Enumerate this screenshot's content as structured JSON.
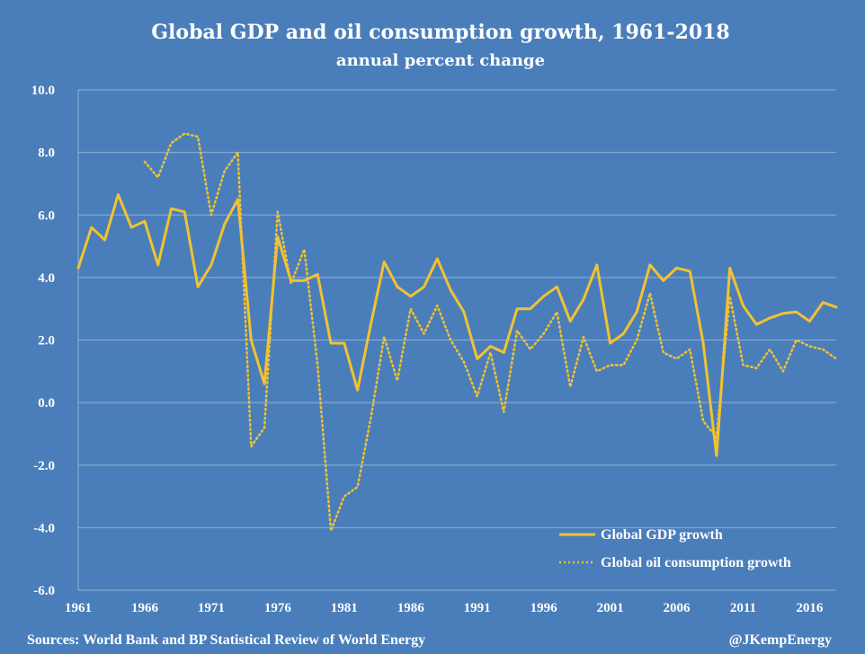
{
  "colors": {
    "background": "#4a7ebb",
    "line": "#f2c230",
    "grid": "#8fb0d6",
    "text": "#ffffff"
  },
  "chart_data": {
    "type": "line",
    "title": "Global GDP and oil consumption growth, 1961-2018",
    "subtitle": "annual percent change",
    "xlabel": "",
    "ylabel": "",
    "xlim": [
      1961,
      2018
    ],
    "ylim": [
      -6,
      10
    ],
    "grid": true,
    "legend_position": "bottom-right",
    "y_ticks": [
      "10.0",
      "8.0",
      "6.0",
      "4.0",
      "2.0",
      "0.0",
      "-2.0",
      "-4.0",
      "-6.0"
    ],
    "x_ticks": [
      "1961",
      "1966",
      "1971",
      "1976",
      "1981",
      "1986",
      "1991",
      "1996",
      "2001",
      "2006",
      "2011",
      "2016"
    ],
    "series": [
      {
        "name": "Global GDP growth",
        "style": "solid",
        "x": [
          1961,
          1962,
          1963,
          1964,
          1965,
          1966,
          1967,
          1968,
          1969,
          1970,
          1971,
          1972,
          1973,
          1974,
          1975,
          1976,
          1977,
          1978,
          1979,
          1980,
          1981,
          1982,
          1983,
          1984,
          1985,
          1986,
          1987,
          1988,
          1989,
          1990,
          1991,
          1992,
          1993,
          1994,
          1995,
          1996,
          1997,
          1998,
          1999,
          2000,
          2001,
          2002,
          2003,
          2004,
          2005,
          2006,
          2007,
          2008,
          2009,
          2010,
          2011,
          2012,
          2013,
          2014,
          2015,
          2016,
          2017,
          2018
        ],
        "values": [
          4.3,
          5.6,
          5.2,
          6.65,
          5.6,
          5.8,
          4.4,
          6.2,
          6.1,
          3.7,
          4.4,
          5.7,
          6.5,
          2.0,
          0.6,
          5.3,
          3.9,
          3.9,
          4.1,
          1.9,
          1.9,
          0.4,
          2.5,
          4.5,
          3.7,
          3.4,
          3.7,
          4.6,
          3.6,
          2.9,
          1.4,
          1.8,
          1.6,
          3.0,
          3.0,
          3.4,
          3.7,
          2.6,
          3.3,
          4.4,
          1.9,
          2.2,
          2.9,
          4.4,
          3.9,
          4.3,
          4.2,
          1.9,
          -1.7,
          4.3,
          3.1,
          2.5,
          2.7,
          2.85,
          2.9,
          2.6,
          3.2,
          3.05
        ]
      },
      {
        "name": "Global oil consumption growth",
        "style": "dotted",
        "x": [
          1966,
          1967,
          1968,
          1969,
          1970,
          1971,
          1972,
          1973,
          1974,
          1975,
          1976,
          1977,
          1978,
          1979,
          1980,
          1981,
          1982,
          1983,
          1984,
          1985,
          1986,
          1987,
          1988,
          1989,
          1990,
          1991,
          1992,
          1993,
          1994,
          1995,
          1996,
          1997,
          1998,
          1999,
          2000,
          2001,
          2002,
          2003,
          2004,
          2005,
          2006,
          2007,
          2008,
          2009,
          2010,
          2011,
          2012,
          2013,
          2014,
          2015,
          2016,
          2017,
          2018
        ],
        "values": [
          7.7,
          7.2,
          8.3,
          8.6,
          8.5,
          6.0,
          7.4,
          8.0,
          -1.4,
          -0.8,
          6.1,
          3.8,
          4.9,
          1.2,
          -4.1,
          -3.0,
          -2.7,
          -0.5,
          2.1,
          0.7,
          3.0,
          2.2,
          3.1,
          2.0,
          1.3,
          0.2,
          1.6,
          -0.3,
          2.3,
          1.7,
          2.2,
          2.9,
          0.5,
          2.1,
          1.0,
          1.2,
          1.2,
          2.0,
          3.5,
          1.6,
          1.4,
          1.7,
          -0.6,
          -1.1,
          3.4,
          1.2,
          1.1,
          1.7,
          1.0,
          2.0,
          1.8,
          1.7,
          1.4
        ]
      }
    ]
  },
  "footer": {
    "source": "Sources: World Bank and BP Statistical Review of World Energy",
    "credit": "@JKempEnergy"
  }
}
